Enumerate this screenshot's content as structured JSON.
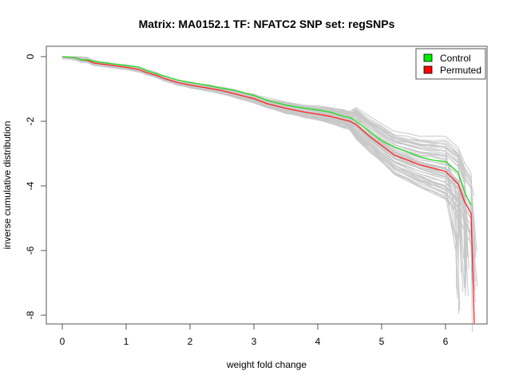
{
  "chart_data": {
    "type": "line",
    "title": "Matrix: MA0152.1 TF: NFATC2 SNP set: regSNPs",
    "xlabel": "weight fold change",
    "ylabel": "inverse cumulative distribution",
    "xlim": [
      -0.3,
      6.6
    ],
    "ylim": [
      -8.3,
      0.3
    ],
    "xticks": [
      0,
      1,
      2,
      3,
      4,
      5,
      6
    ],
    "yticks": [
      0,
      -2,
      -4,
      -6,
      -8
    ],
    "grid": false,
    "legend": {
      "position": "top-right",
      "entries": [
        {
          "label": "Control",
          "color": "#00ee00"
        },
        {
          "label": "Permuted",
          "color": "#ff0000"
        }
      ]
    },
    "series": [
      {
        "name": "Control",
        "color": "#22dd22",
        "x": [
          0,
          0.2,
          0.3,
          0.4,
          0.5,
          0.7,
          1.0,
          1.2,
          1.3,
          1.5,
          1.6,
          1.8,
          2.0,
          2.3,
          2.5,
          2.7,
          3.0,
          3.2,
          3.5,
          3.8,
          4.0,
          4.2,
          4.4,
          4.5,
          4.6,
          4.8,
          5.0,
          5.2,
          5.4,
          5.6,
          5.8,
          6.0,
          6.2,
          6.3,
          6.4
        ],
        "y": [
          0,
          -0.03,
          -0.1,
          -0.1,
          -0.15,
          -0.2,
          -0.28,
          -0.32,
          -0.42,
          -0.55,
          -0.6,
          -0.72,
          -0.8,
          -0.9,
          -0.98,
          -1.05,
          -1.2,
          -1.35,
          -1.5,
          -1.6,
          -1.65,
          -1.72,
          -1.85,
          -1.88,
          -2.0,
          -2.3,
          -2.6,
          -2.8,
          -2.95,
          -3.1,
          -3.2,
          -3.25,
          -3.6,
          -4.2,
          -4.6
        ]
      },
      {
        "name": "Permuted",
        "color": "#ff2222",
        "x": [
          0,
          0.2,
          0.3,
          0.4,
          0.5,
          0.7,
          1.0,
          1.2,
          1.3,
          1.5,
          1.6,
          1.8,
          2.0,
          2.3,
          2.5,
          2.7,
          3.0,
          3.2,
          3.5,
          3.8,
          4.0,
          4.2,
          4.4,
          4.5,
          4.6,
          4.8,
          5.0,
          5.2,
          5.4,
          5.6,
          5.8,
          6.0,
          6.2,
          6.3,
          6.4,
          6.45
        ],
        "y": [
          0,
          -0.03,
          -0.1,
          -0.12,
          -0.2,
          -0.25,
          -0.33,
          -0.4,
          -0.48,
          -0.6,
          -0.68,
          -0.8,
          -0.88,
          -0.98,
          -1.05,
          -1.15,
          -1.3,
          -1.45,
          -1.6,
          -1.72,
          -1.78,
          -1.85,
          -1.95,
          -2.0,
          -2.1,
          -2.45,
          -2.75,
          -3.05,
          -3.2,
          -3.35,
          -3.45,
          -3.55,
          -3.95,
          -4.5,
          -4.85,
          -8.25
        ]
      }
    ],
    "permutation_curves": {
      "count": 60,
      "color": "#c8c8c8"
    }
  }
}
